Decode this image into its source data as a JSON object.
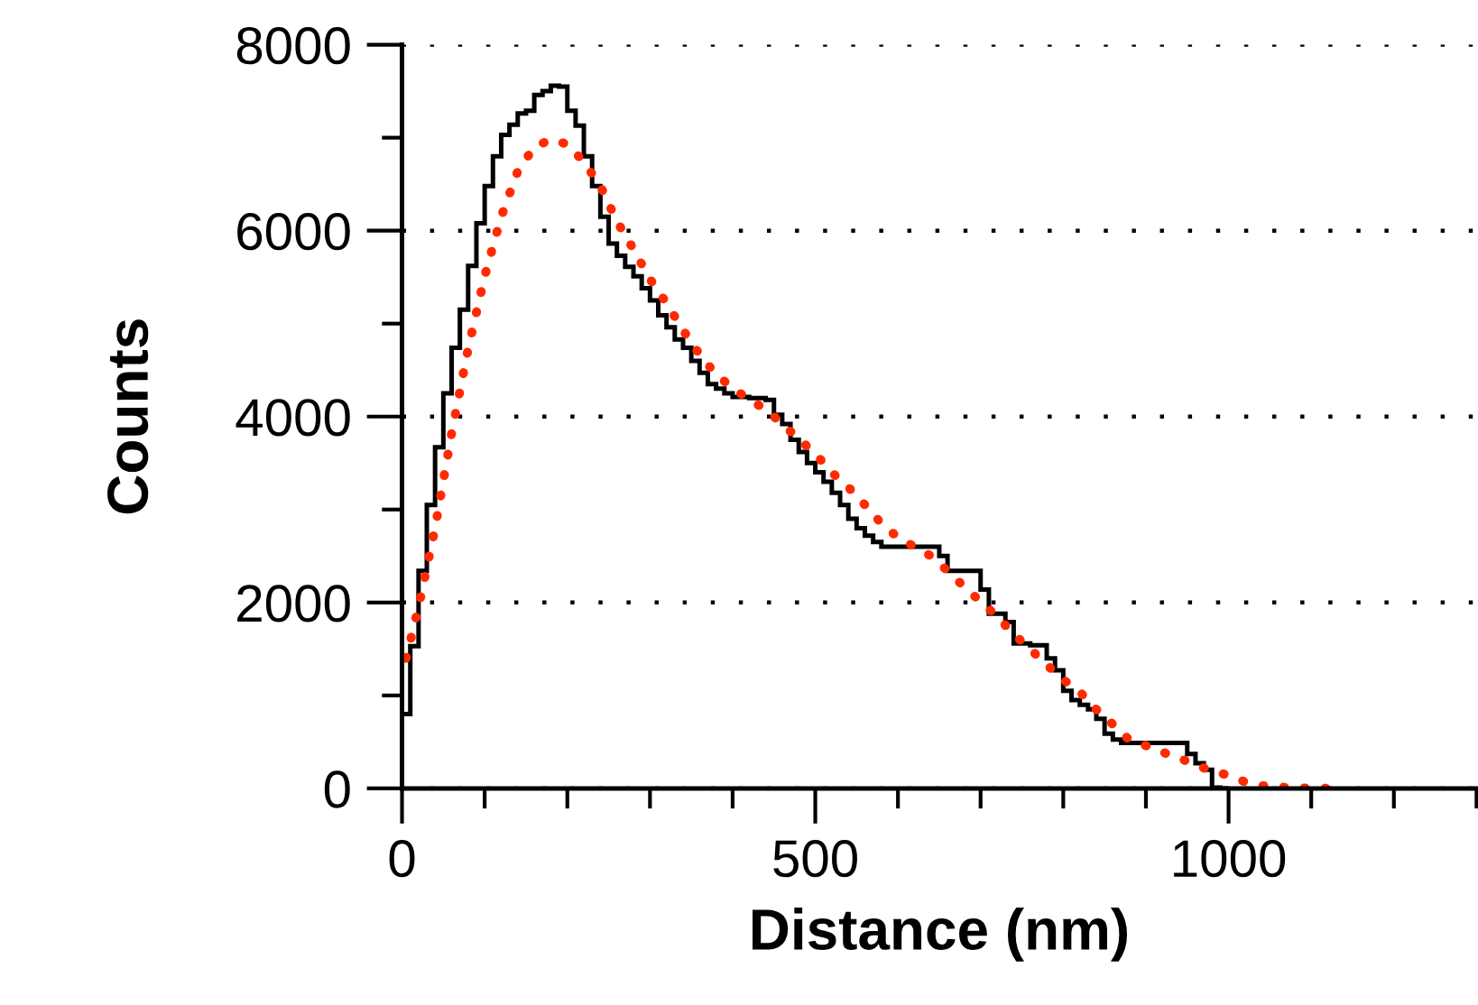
{
  "chart_data": {
    "type": "histogram",
    "xlabel": "Distance (nm)",
    "ylabel": "Counts",
    "bins": [
      0,
      10,
      20,
      30,
      40,
      50,
      60,
      70,
      80,
      90,
      100,
      110,
      120,
      130,
      140,
      150,
      160,
      170,
      180,
      190,
      200,
      210,
      220,
      230,
      240,
      250,
      260,
      270,
      280,
      290,
      300,
      310,
      320,
      330,
      340,
      350,
      360,
      370,
      380,
      390,
      400,
      410,
      420,
      430,
      440,
      450,
      460,
      470,
      480,
      490,
      500,
      510,
      520,
      530,
      540,
      550,
      560,
      570,
      580,
      590,
      600,
      610,
      620,
      630,
      640,
      650,
      660,
      670,
      680,
      690,
      700,
      710,
      720,
      730,
      740,
      750,
      760,
      770,
      780,
      790,
      800,
      810,
      820,
      830,
      840,
      850,
      860,
      870,
      880,
      890,
      900,
      910,
      920,
      930,
      940,
      950,
      960,
      970,
      980,
      990,
      1000
    ],
    "values": [
      800,
      1530,
      2340,
      3050,
      3670,
      4250,
      4740,
      5150,
      5620,
      6080,
      6480,
      6800,
      7030,
      7140,
      7260,
      7290,
      7460,
      7500,
      7560,
      7550,
      7290,
      7130,
      6800,
      6480,
      6150,
      5860,
      5730,
      5610,
      5510,
      5380,
      5250,
      5090,
      4960,
      4830,
      4740,
      4600,
      4470,
      4350,
      4300,
      4250,
      4210,
      4210,
      4200,
      4200,
      4180,
      4020,
      3920,
      3750,
      3620,
      3500,
      3400,
      3300,
      3180,
      3050,
      2900,
      2800,
      2720,
      2650,
      2600,
      2600,
      2600,
      2600,
      2600,
      2600,
      2600,
      2500,
      2340,
      2340,
      2340,
      2340,
      2140,
      1880,
      1880,
      1790,
      1560,
      1560,
      1540,
      1540,
      1400,
      1270,
      1050,
      950,
      900,
      850,
      750,
      590,
      525,
      490,
      490,
      490,
      490,
      490,
      490,
      490,
      490,
      370,
      270,
      200,
      10,
      0
    ],
    "color": "#000000",
    "series": [
      {
        "type": "line",
        "color": "#ff2a00",
        "line_style": "dotted",
        "x": [
          5,
          20,
          40,
          60,
          80,
          100,
          120,
          140,
          160,
          180,
          200,
          220,
          240,
          260,
          280,
          300,
          320,
          340,
          360,
          380,
          400,
          420,
          440,
          460,
          480,
          500,
          520,
          540,
          560,
          580,
          600,
          620,
          640,
          660,
          680,
          700,
          720,
          740,
          760,
          780,
          800,
          820,
          840,
          860,
          880,
          900,
          920,
          940,
          960,
          980,
          1000,
          1020,
          1040,
          1060,
          1080,
          1100,
          1140
        ],
        "values": [
          1400,
          1950,
          2800,
          3820,
          4730,
          5510,
          6150,
          6640,
          6900,
          6980,
          6930,
          6740,
          6480,
          6100,
          5800,
          5480,
          5220,
          4930,
          4670,
          4450,
          4310,
          4180,
          4080,
          3920,
          3760,
          3600,
          3400,
          3240,
          3050,
          2850,
          2700,
          2600,
          2500,
          2340,
          2170,
          2010,
          1850,
          1660,
          1500,
          1330,
          1170,
          1040,
          850,
          690,
          520,
          460,
          390,
          330,
          250,
          190,
          140,
          70,
          30,
          15,
          8,
          3,
          0
        ]
      }
    ],
    "xlim": [
      0,
      1300
    ],
    "xticks": [
      0,
      {
        "value": 100,
        "label": null
      },
      {
        "value": 200,
        "label": null
      },
      {
        "value": 300,
        "label": null
      },
      {
        "value": 400,
        "label": null
      },
      500,
      {
        "value": 600,
        "label": null
      },
      {
        "value": 700,
        "label": null
      },
      {
        "value": 800,
        "label": null
      },
      {
        "value": 900,
        "label": null
      },
      1000,
      {
        "value": 1100,
        "label": null
      },
      {
        "value": 1200,
        "label": null
      },
      {
        "value": 1300,
        "label": null
      }
    ],
    "ylim": [
      0,
      8000
    ],
    "yticks": [
      0,
      {
        "value": 1000,
        "label": null
      },
      2000,
      {
        "value": 3000,
        "label": null
      },
      4000,
      {
        "value": 5000,
        "label": null
      },
      6000,
      {
        "value": 7000,
        "label": null
      },
      8000
    ],
    "grid": "y"
  }
}
